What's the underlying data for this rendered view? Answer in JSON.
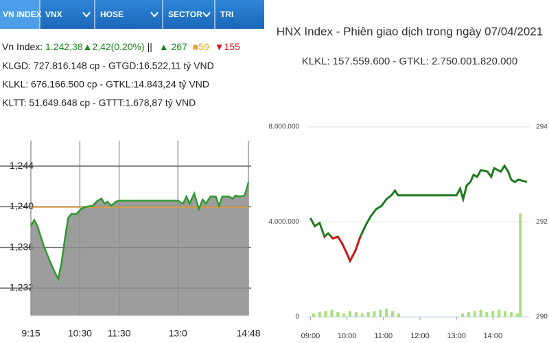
{
  "tabs": [
    "VN INDEX",
    "VNX",
    "HOSE",
    "SECTOR",
    "TRI"
  ],
  "index_info": {
    "label": "Vn Index:",
    "value": "1.242,38",
    "change": "▲2,42(0.20%)",
    "separator": "||",
    "advances": "▲ 267",
    "unchanged": "■59",
    "declines": "▼155"
  },
  "stats": [
    "KLGD: 727.816.148 cp - GTGD:16.522,11 tỷ VND",
    "KLKL: 676.166.500 cp - GTKL:14.843,24 tỷ VND",
    "KLTT: 51.649.648 cp - GTTT:1.678,87 tỷ VND"
  ],
  "chart_data": [
    {
      "type": "area",
      "color": "#2e9a2e",
      "fill": "#8c8c8c",
      "x": [
        555,
        560,
        565,
        575,
        585,
        592,
        597,
        602,
        607,
        612,
        617,
        625,
        632,
        640,
        650,
        657,
        663,
        668,
        672,
        678,
        685,
        690,
        780,
        788,
        793,
        798,
        805,
        812,
        818,
        823,
        830,
        838,
        843,
        848,
        858,
        864,
        868,
        875,
        882,
        886,
        888
      ],
      "values": [
        1238.1,
        1238.7,
        1238.1,
        1236.1,
        1234.5,
        1233.5,
        1232.9,
        1234.5,
        1236.8,
        1238.9,
        1239.3,
        1239.3,
        1239.8,
        1240,
        1240.1,
        1240.6,
        1240.8,
        1240.3,
        1240.5,
        1240.1,
        1240.5,
        1240.6,
        1240.6,
        1240.3,
        1241,
        1240.3,
        1241.3,
        1239.8,
        1240.7,
        1240.3,
        1241,
        1241,
        1240.1,
        1241,
        1241,
        1240.8,
        1241.1,
        1241,
        1241.1,
        1241.9,
        1242.4
      ],
      "reference": 1239.96,
      "reference_color": "#e0a030",
      "xlim": [
        555,
        888
      ],
      "xticks": [
        {
          "value": 555,
          "label": "9:15"
        },
        {
          "value": 630,
          "label": "10:30"
        },
        {
          "value": 690,
          "label": "11:30"
        },
        {
          "value": 780,
          "label": "13:0"
        },
        {
          "value": 888,
          "label": "14:48"
        }
      ],
      "ylim": [
        1229.3,
        1246.5
      ],
      "yticks": [
        {
          "value": 1232,
          "label": "1,232"
        },
        {
          "value": 1236,
          "label": "1,236"
        },
        {
          "value": 1240,
          "label": "1,240"
        },
        {
          "value": 1244,
          "label": "1,244"
        }
      ],
      "grid": true
    },
    {
      "type": "combo",
      "title": "HNX Index - Phiên giao dịch trong ngày 07/04/2021",
      "subtitle": "KLKL: 157.559.600 - GTKL: 2.750.001.820.000",
      "series": [
        {
          "type": "bar",
          "color": "#a8e07c",
          "x": [
            545,
            555,
            565,
            575,
            585,
            595,
            605,
            615,
            625,
            635,
            645,
            655,
            665,
            675,
            685,
            790,
            800,
            810,
            820,
            830,
            840,
            850,
            860,
            870,
            880,
            885
          ],
          "values": [
            150000,
            200000,
            250000,
            300000,
            200000,
            150000,
            250000,
            200000,
            150000,
            200000,
            250000,
            300000,
            350000,
            250000,
            150000,
            150000,
            200000,
            250000,
            300000,
            200000,
            250000,
            300000,
            250000,
            200000,
            150000,
            4350000
          ]
        },
        {
          "type": "line",
          "axis": "y2",
          "color": "#1e7a1e",
          "below_color": "#c81414",
          "reference": 291.7,
          "x": [
            540,
            547,
            555,
            563,
            569,
            577,
            585,
            592,
            600,
            605,
            610,
            614,
            622,
            630,
            639,
            648,
            657,
            665,
            673,
            679,
            684,
            690,
            780,
            786,
            791,
            797,
            803,
            808,
            814,
            820,
            831,
            837,
            842,
            848,
            853,
            859,
            865,
            870,
            876,
            882,
            896
          ],
          "values": [
            292.08,
            291.91,
            291.98,
            291.69,
            291.76,
            291.65,
            291.69,
            291.55,
            291.33,
            291.18,
            291.3,
            291.4,
            291.69,
            291.91,
            292.12,
            292.27,
            292.34,
            292.48,
            292.56,
            292.66,
            292.56,
            292.56,
            292.56,
            292.7,
            292.48,
            292.77,
            292.84,
            292.99,
            292.95,
            293.09,
            293.06,
            292.95,
            293.13,
            293.09,
            293.06,
            293.18,
            293.06,
            292.89,
            292.84,
            292.89,
            292.84
          ]
        }
      ],
      "xlim": [
        535,
        900
      ],
      "xticks": [
        {
          "value": 540,
          "label": "09:00"
        },
        {
          "value": 600,
          "label": "10:00"
        },
        {
          "value": 660,
          "label": "11:00"
        },
        {
          "value": 720,
          "label": "12:00"
        },
        {
          "value": 780,
          "label": "13:00"
        },
        {
          "value": 840,
          "label": "14:00"
        }
      ],
      "ylim": [
        0,
        8000000
      ],
      "yticks": [
        0,
        {
          "value": 4000000,
          "label": "4.000.000"
        },
        {
          "value": 8000000,
          "label": "8.000.000"
        }
      ],
      "y2lim": [
        290,
        294
      ],
      "y2ticks": [
        290,
        292,
        294
      ],
      "grid": true
    }
  ]
}
